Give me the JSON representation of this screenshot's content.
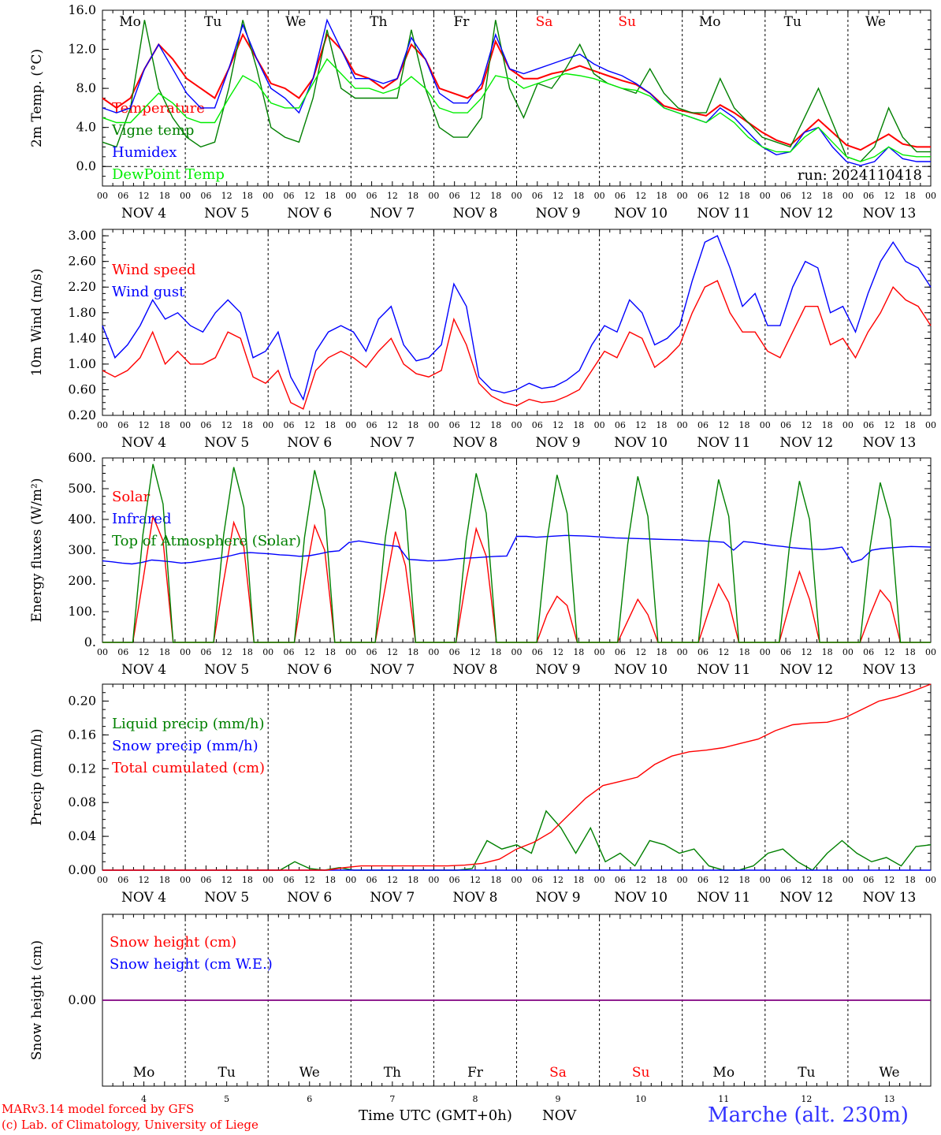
{
  "colors": {
    "red": "#ff0000",
    "green": "#008000",
    "blue": "#0000ff",
    "lightgreen": "#00ee00",
    "purple": "#800080",
    "title": "#3333ff"
  },
  "footer": {
    "model": "MARv3.14 model forced by GFS",
    "credit": "(c) Lab. of Climatology, University of Liege",
    "xlabel": "Time UTC (GMT+0h)",
    "month": "NOV",
    "station": "Marche (alt. 230m)"
  },
  "run_label": "run: 2024110418",
  "hour_ticks": [
    "00",
    "06",
    "12",
    "18"
  ],
  "end_tick": "00",
  "dates": [
    "NOV  4",
    "NOV  5",
    "NOV  6",
    "NOV  7",
    "NOV  8",
    "NOV  9",
    "NOV 10",
    "NOV 11",
    "NOV 12",
    "NOV 13"
  ],
  "day_numbers": [
    "4",
    "5",
    "6",
    "7",
    "8",
    "9",
    "10",
    "11",
    "12",
    "13"
  ],
  "weekdays": [
    "Mo",
    "Tu",
    "We",
    "Th",
    "Fr",
    "Sa",
    "Su",
    "Mo",
    "Tu",
    "We"
  ],
  "weekend": [
    false,
    false,
    false,
    false,
    false,
    true,
    true,
    false,
    false,
    false
  ],
  "chart_data": [
    {
      "type": "line",
      "ylabel": "2m Temp. (°C)",
      "ylim": [
        -2,
        16
      ],
      "yticks": [
        "16.0",
        "12.0",
        "8.0",
        "4.0",
        "0.0"
      ],
      "ytick_values": [
        16,
        12,
        8,
        4,
        0
      ],
      "x_step_hours": 6,
      "series": [
        {
          "name": "Temperature",
          "color": "red",
          "values": [
            7,
            6,
            7,
            10,
            12.5,
            11,
            9,
            8,
            7,
            10,
            13.5,
            11,
            8.5,
            8,
            7,
            9,
            13.5,
            12,
            9.5,
            9,
            8,
            9,
            12.5,
            11,
            8,
            7.5,
            7,
            8,
            12.8,
            10,
            9,
            9,
            9.5,
            9.8,
            10.3,
            9.8,
            9.3,
            8.8,
            8.4,
            7.5,
            6.2,
            5.8,
            5.5,
            5.2,
            6.3,
            5.5,
            4.5,
            3.5,
            2.7,
            2.2,
            3.5,
            4.8,
            3.5,
            2.2,
            1.7,
            2.5,
            3.3,
            2.3,
            2.0,
            2.0
          ]
        },
        {
          "name": "Vigne temp",
          "color": "green",
          "values": [
            2.5,
            2,
            6,
            15,
            8,
            5,
            3,
            2,
            2.5,
            8,
            15,
            10,
            4,
            3,
            2.5,
            7,
            14,
            8,
            7,
            7,
            7,
            7,
            14,
            8,
            4,
            3,
            3,
            5,
            15,
            8,
            5,
            8.5,
            8,
            10,
            12.5,
            9.5,
            8.5,
            8,
            7.5,
            10,
            7.5,
            6,
            5.5,
            5.5,
            9,
            6,
            4.5,
            3,
            2.5,
            2,
            5,
            8,
            4.5,
            1,
            0.5,
            2,
            6,
            3,
            1.5,
            1.5
          ]
        },
        {
          "name": "Humidex",
          "color": "blue",
          "values": [
            6,
            5.5,
            6,
            10,
            12.5,
            10,
            7.5,
            6,
            6,
            10,
            14.5,
            11,
            8,
            7,
            5.5,
            9,
            15,
            12,
            9,
            9,
            8.5,
            9,
            13.2,
            11,
            7.5,
            6.5,
            6.5,
            8.5,
            13.5,
            10,
            9.5,
            10,
            10.5,
            11,
            11.5,
            10.5,
            9.8,
            9.3,
            8.5,
            7.5,
            6,
            5.5,
            5,
            4.5,
            6,
            5,
            3.5,
            2,
            1.2,
            1.5,
            3.5,
            4,
            2,
            0.5,
            0.1,
            0.5,
            2,
            0.8,
            0.5,
            0.5
          ]
        },
        {
          "name": "DewPoint Temp",
          "color": "lightgreen",
          "values": [
            5,
            4.5,
            4.5,
            6,
            7.5,
            6.5,
            5,
            4.5,
            4.5,
            7,
            9.3,
            8.5,
            6.5,
            6,
            6,
            8.5,
            11,
            9.5,
            8,
            8,
            7.5,
            8,
            9.2,
            8,
            6,
            5.5,
            5.5,
            7,
            9.3,
            9,
            8,
            8.5,
            9,
            9.5,
            9.3,
            9,
            8.5,
            8,
            7.8,
            7.2,
            6,
            5.5,
            5,
            4.5,
            5.5,
            4.5,
            3,
            2,
            1.5,
            1.5,
            3,
            4,
            2.5,
            1,
            0.5,
            1,
            2,
            1.2,
            1,
            1
          ]
        }
      ]
    },
    {
      "type": "line",
      "ylabel": "10m Wind (m/s)",
      "ylim": [
        0.2,
        3.1
      ],
      "yticks": [
        "3.00",
        "2.60",
        "2.20",
        "1.80",
        "1.40",
        "1.00",
        "0.60",
        "0.20"
      ],
      "ytick_values": [
        3.0,
        2.6,
        2.2,
        1.8,
        1.4,
        1.0,
        0.6,
        0.2
      ],
      "x_step_hours": 6,
      "series": [
        {
          "name": "Wind speed",
          "color": "red",
          "values": [
            0.9,
            0.8,
            0.9,
            1.1,
            1.5,
            1.0,
            1.2,
            1.0,
            1.0,
            1.1,
            1.5,
            1.4,
            0.8,
            0.7,
            0.9,
            0.4,
            0.3,
            0.9,
            1.1,
            1.2,
            1.1,
            0.95,
            1.2,
            1.4,
            1.0,
            0.85,
            0.8,
            0.9,
            1.7,
            1.3,
            0.7,
            0.5,
            0.4,
            0.35,
            0.45,
            0.4,
            0.42,
            0.5,
            0.6,
            0.9,
            1.2,
            1.1,
            1.5,
            1.4,
            0.95,
            1.1,
            1.3,
            1.8,
            2.2,
            2.3,
            1.8,
            1.5,
            1.5,
            1.2,
            1.1,
            1.5,
            1.9,
            1.9,
            1.3,
            1.4,
            1.1,
            1.5,
            1.8,
            2.2,
            2.0,
            1.9,
            1.6
          ]
        },
        {
          "name": "Wind gust",
          "color": "blue",
          "values": [
            1.6,
            1.1,
            1.3,
            1.6,
            2.0,
            1.7,
            1.8,
            1.6,
            1.5,
            1.8,
            2.0,
            1.8,
            1.1,
            1.2,
            1.5,
            0.8,
            0.45,
            1.2,
            1.5,
            1.6,
            1.5,
            1.2,
            1.7,
            1.9,
            1.3,
            1.05,
            1.1,
            1.3,
            2.25,
            1.9,
            0.8,
            0.6,
            0.55,
            0.6,
            0.7,
            0.62,
            0.65,
            0.75,
            0.9,
            1.3,
            1.6,
            1.5,
            2.0,
            1.8,
            1.3,
            1.4,
            1.6,
            2.3,
            2.9,
            3.0,
            2.5,
            1.9,
            2.1,
            1.6,
            1.6,
            2.2,
            2.6,
            2.5,
            1.8,
            1.9,
            1.5,
            2.1,
            2.6,
            2.9,
            2.6,
            2.5,
            2.2
          ]
        }
      ]
    },
    {
      "type": "line",
      "ylabel": "Energy fluxes (W/m²)",
      "ylim": [
        0,
        600
      ],
      "yticks": [
        "600.",
        "500.",
        "400.",
        "300.",
        "200.",
        "100.",
        "0."
      ],
      "ytick_values": [
        600,
        500,
        400,
        300,
        200,
        100,
        0
      ],
      "x_step_hours": 3,
      "series": [
        {
          "name": "Solar",
          "color": "red",
          "values": [
            0,
            0,
            0,
            0,
            200,
            410,
            330,
            0,
            0,
            0,
            0,
            0,
            200,
            390,
            310,
            0,
            0,
            0,
            0,
            0,
            200,
            380,
            300,
            0,
            0,
            0,
            0,
            0,
            180,
            360,
            250,
            0,
            0,
            0,
            0,
            0,
            200,
            370,
            280,
            0,
            0,
            0,
            0,
            0,
            90,
            150,
            120,
            0,
            0,
            0,
            0,
            0,
            70,
            140,
            90,
            0,
            0,
            0,
            0,
            0,
            100,
            190,
            130,
            0,
            0,
            0,
            0,
            0,
            120,
            230,
            140,
            0,
            0,
            0,
            0,
            0,
            90,
            170,
            130,
            0,
            0,
            0,
            0
          ]
        },
        {
          "name": "Infrared",
          "color": "blue",
          "values": [
            265,
            262,
            258,
            255,
            260,
            268,
            265,
            262,
            258,
            260,
            265,
            270,
            275,
            282,
            290,
            292,
            290,
            288,
            285,
            283,
            280,
            282,
            288,
            295,
            298,
            325,
            330,
            325,
            320,
            315,
            312,
            270,
            268,
            265,
            266,
            268,
            272,
            274,
            276,
            278,
            280,
            281,
            345,
            345,
            342,
            344,
            346,
            348,
            347,
            346,
            344,
            342,
            340,
            339,
            338,
            337,
            336,
            335,
            334,
            333,
            331,
            330,
            328,
            326,
            300,
            328,
            325,
            320,
            315,
            312,
            308,
            305,
            303,
            302,
            305,
            310,
            260,
            270,
            300,
            305,
            308,
            310,
            312,
            311,
            310
          ]
        },
        {
          "name": "Top of Atmosphere (Solar)",
          "color": "green",
          "values": [
            0,
            0,
            0,
            0,
            350,
            580,
            450,
            0,
            0,
            0,
            0,
            0,
            350,
            570,
            440,
            0,
            0,
            0,
            0,
            0,
            340,
            560,
            430,
            0,
            0,
            0,
            0,
            0,
            340,
            555,
            430,
            0,
            0,
            0,
            0,
            0,
            330,
            550,
            420,
            0,
            0,
            0,
            0,
            0,
            330,
            545,
            420,
            0,
            0,
            0,
            0,
            0,
            320,
            540,
            410,
            0,
            0,
            0,
            0,
            0,
            320,
            530,
            410,
            0,
            0,
            0,
            0,
            0,
            310,
            525,
            400,
            0,
            0,
            0,
            0,
            0,
            310,
            520,
            400,
            0,
            0,
            0,
            0
          ]
        }
      ]
    },
    {
      "type": "line",
      "ylabel": "Precip (mm/h)",
      "ylim": [
        0,
        0.22
      ],
      "yticks": [
        "0.20",
        "0.16",
        "0.12",
        "0.08",
        "0.04",
        "0.00"
      ],
      "ytick_values": [
        0.2,
        0.16,
        0.12,
        0.08,
        0.04,
        0.0
      ],
      "x_step_hours": 6,
      "series": [
        {
          "name": "Liquid precip (mm/h)",
          "color": "green",
          "values": [
            0,
            0,
            0,
            0,
            0,
            0,
            0,
            0,
            0,
            0,
            0,
            0,
            0,
            0.01,
            0.002,
            0,
            0.003,
            0,
            0,
            0,
            0,
            0,
            0,
            0,
            0,
            0.002,
            0.035,
            0.025,
            0.03,
            0.02,
            0.07,
            0.05,
            0.02,
            0.05,
            0.01,
            0.02,
            0.005,
            0.035,
            0.03,
            0.02,
            0.025,
            0.005,
            0,
            0,
            0.005,
            0.02,
            0.025,
            0.01,
            0,
            0.02,
            0.035,
            0.02,
            0.01,
            0.015,
            0.005,
            0.028,
            0.03
          ]
        },
        {
          "name": "Snow precip (mm/h)",
          "color": "blue",
          "values": [
            0,
            0,
            0,
            0,
            0,
            0,
            0,
            0,
            0,
            0,
            0,
            0,
            0,
            0,
            0,
            0,
            0,
            0,
            0,
            0,
            0,
            0,
            0,
            0,
            0,
            0,
            0,
            0,
            0,
            0,
            0,
            0,
            0,
            0,
            0,
            0,
            0,
            0,
            0,
            0,
            0,
            0,
            0,
            0,
            0,
            0,
            0,
            0,
            0,
            0,
            0,
            0,
            0,
            0,
            0,
            0,
            0
          ]
        },
        {
          "name": "Total cumulated (cm)",
          "color": "red",
          "values": [
            0,
            0,
            0,
            0,
            0,
            0,
            0,
            0,
            0,
            0,
            0,
            0,
            0,
            0,
            0.003,
            0.005,
            0.005,
            0.005,
            0.005,
            0.005,
            0.005,
            0.006,
            0.008,
            0.013,
            0.025,
            0.033,
            0.045,
            0.065,
            0.085,
            0.1,
            0.105,
            0.11,
            0.125,
            0.135,
            0.14,
            0.142,
            0.145,
            0.15,
            0.155,
            0.165,
            0.172,
            0.174,
            0.175,
            0.18,
            0.19,
            0.2,
            0.205,
            0.212,
            0.22
          ]
        }
      ]
    },
    {
      "type": "line",
      "ylabel": "Snow height (cm)",
      "ylim": [
        -1,
        1
      ],
      "yticks": [
        "0.00"
      ],
      "ytick_values": [
        0
      ],
      "x_step_hours": 6,
      "series": [
        {
          "name": "Snow height (cm)",
          "color": "red",
          "values": [
            0,
            0
          ]
        },
        {
          "name": "Snow height (cm W.E.)",
          "color": "blue",
          "values": [
            0,
            0
          ]
        }
      ]
    }
  ]
}
